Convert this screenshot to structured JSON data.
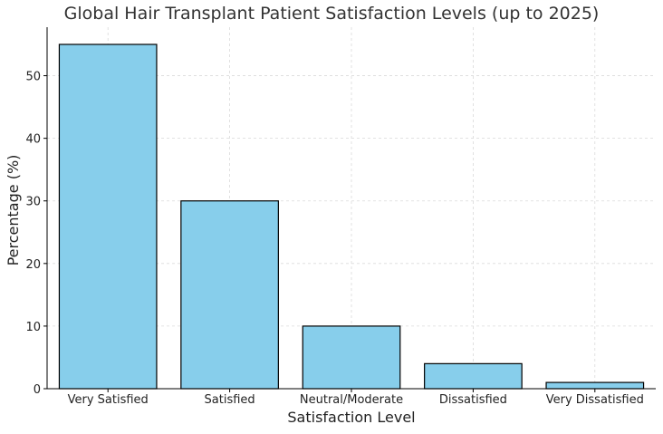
{
  "chart_data": {
    "type": "bar",
    "title": "Global Hair Transplant Patient Satisfaction Levels (up to 2025)",
    "xlabel": "Satisfaction Level",
    "ylabel": "Percentage (%)",
    "categories": [
      "Very Satisfied",
      "Satisfied",
      "Neutral/Moderate",
      "Dissatisfied",
      "Very Dissatisfied"
    ],
    "values": [
      55,
      30,
      10,
      4,
      1
    ],
    "ylim": [
      0,
      57.75
    ],
    "yticks": [
      0,
      10,
      20,
      30,
      40,
      50
    ],
    "grid": true,
    "colors": {
      "bar_fill": "#87CEEB",
      "bar_edge": "#000000",
      "grid": "#d9d9d9"
    }
  }
}
